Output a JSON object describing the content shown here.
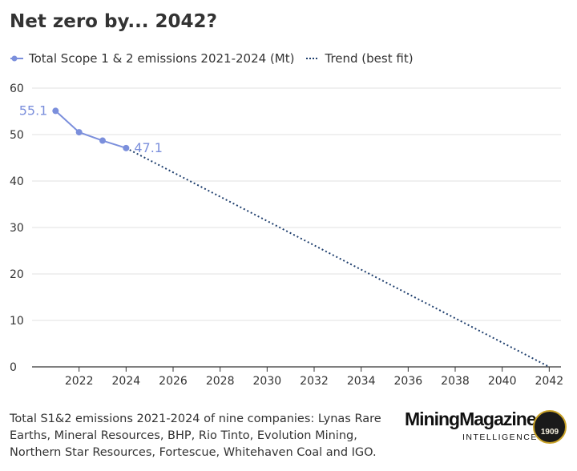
{
  "title": "Net zero by... 2042?",
  "legend": {
    "series_label": "Total Scope 1 & 2 emissions 2021-2024 (Mt)",
    "trend_label": "Trend (best fit)"
  },
  "footer": "Total S1&2 emissions 2021-2024 of nine companies: Lynas Rare Earths, Mineral Resources, BHP, Rio Tinto, Evolution Mining, Northern Star Resources, Fortescue, Whitehaven Coal and IGO.",
  "logo": {
    "name": "MiningMagazine",
    "subtitle": "INTELLIGENCE",
    "badge_year": "1909"
  },
  "colors": {
    "series": "#7b8fdc",
    "trend": "#1f3f6e",
    "grid": "#e2e2e2",
    "axis": "#333333"
  },
  "chart_data": {
    "type": "line",
    "title": "Net zero by... 2042?",
    "xlabel": "",
    "ylabel": "",
    "xlim": [
      2020,
      2042.5
    ],
    "ylim": [
      0,
      60
    ],
    "yticks": [
      0,
      10,
      20,
      30,
      40,
      50,
      60
    ],
    "xticks": [
      2022,
      2024,
      2026,
      2028,
      2030,
      2032,
      2034,
      2036,
      2038,
      2040,
      2042
    ],
    "grid": true,
    "legend_position": "top-left",
    "series": [
      {
        "name": "Total Scope 1 & 2 emissions 2021-2024 (Mt)",
        "style": "solid-markers",
        "x": [
          2021,
          2022,
          2023,
          2024
        ],
        "y": [
          55.1,
          50.5,
          48.7,
          47.1
        ],
        "labels": [
          "55.1",
          "",
          "",
          "47.1"
        ]
      },
      {
        "name": "Trend (best fit)",
        "style": "dotted",
        "x": [
          2024,
          2042
        ],
        "y": [
          47.1,
          0
        ]
      }
    ]
  }
}
